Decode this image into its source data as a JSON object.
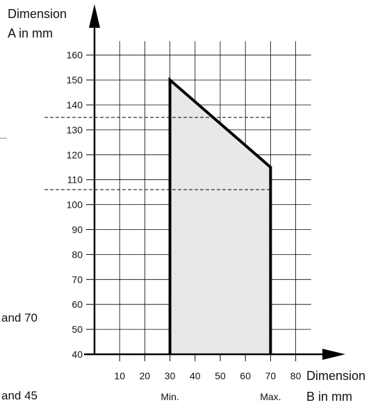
{
  "chart_data": {
    "type": "area",
    "ylabel_line1": "Dimension",
    "ylabel_line2": "A in mm",
    "xlabel_line1": "Dimension",
    "xlabel_line2": "B in mm",
    "x_ticks": [
      10,
      20,
      30,
      40,
      50,
      60,
      70,
      80
    ],
    "y_ticks": [
      40,
      50,
      60,
      70,
      80,
      90,
      100,
      110,
      120,
      130,
      140,
      150,
      160
    ],
    "xlim": [
      0,
      85
    ],
    "ylim": [
      40,
      165
    ],
    "grid": true,
    "region": {
      "x": [
        30,
        30,
        70,
        70
      ],
      "y": [
        40,
        150,
        115,
        40
      ],
      "fill": "#e8e8e8",
      "stroke": "#000000"
    },
    "reference_lines": [
      {
        "y": 135,
        "style": "dashed"
      },
      {
        "y": 106,
        "style": "dashed"
      }
    ],
    "annotations": [
      {
        "text": "Min.",
        "x": 30
      },
      {
        "text": "Max.",
        "x": 70
      }
    ]
  },
  "side_text": [
    {
      "text": "and 70"
    },
    {
      "text": "and 45"
    }
  ]
}
